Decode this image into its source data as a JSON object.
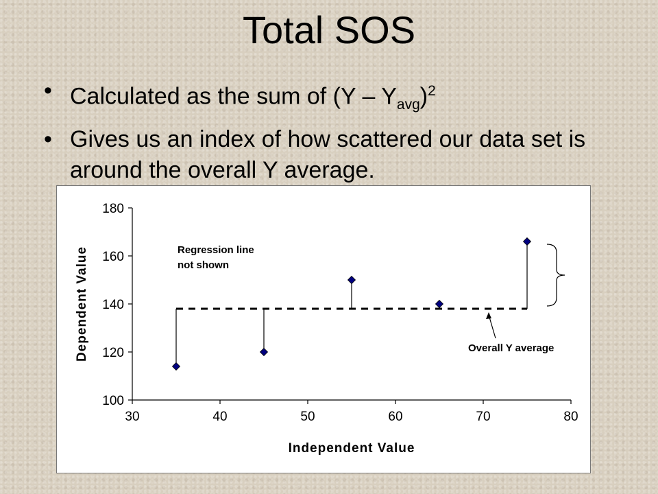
{
  "slide": {
    "title": "Total SOS",
    "bullet1": {
      "pre": "Calculated as the sum of (Y – Y",
      "sub": "avg",
      "post": ")",
      "sup": "2"
    },
    "bullet2": "Gives us an index of how scattered our data set is around the overall Y average.",
    "bullet_char": "•"
  },
  "chart_data": {
    "type": "scatter",
    "xlabel": "Independent Value",
    "ylabel": "Dependent Value",
    "xlim": [
      30,
      80
    ],
    "ylim": [
      100,
      180
    ],
    "xticks": [
      30,
      40,
      50,
      60,
      70,
      80
    ],
    "yticks": [
      100,
      120,
      140,
      160,
      180
    ],
    "points": [
      {
        "x": 35,
        "y": 114
      },
      {
        "x": 45,
        "y": 120
      },
      {
        "x": 55,
        "y": 150
      },
      {
        "x": 65,
        "y": 140
      },
      {
        "x": 75,
        "y": 166
      }
    ],
    "y_average": 138,
    "grid": false,
    "marker": "diamond",
    "marker_color": "#00007f",
    "annotations": {
      "regression": "Regression line not shown",
      "regression_lines": [
        "Regression line",
        "not shown"
      ],
      "average": "Overall Y average"
    }
  }
}
